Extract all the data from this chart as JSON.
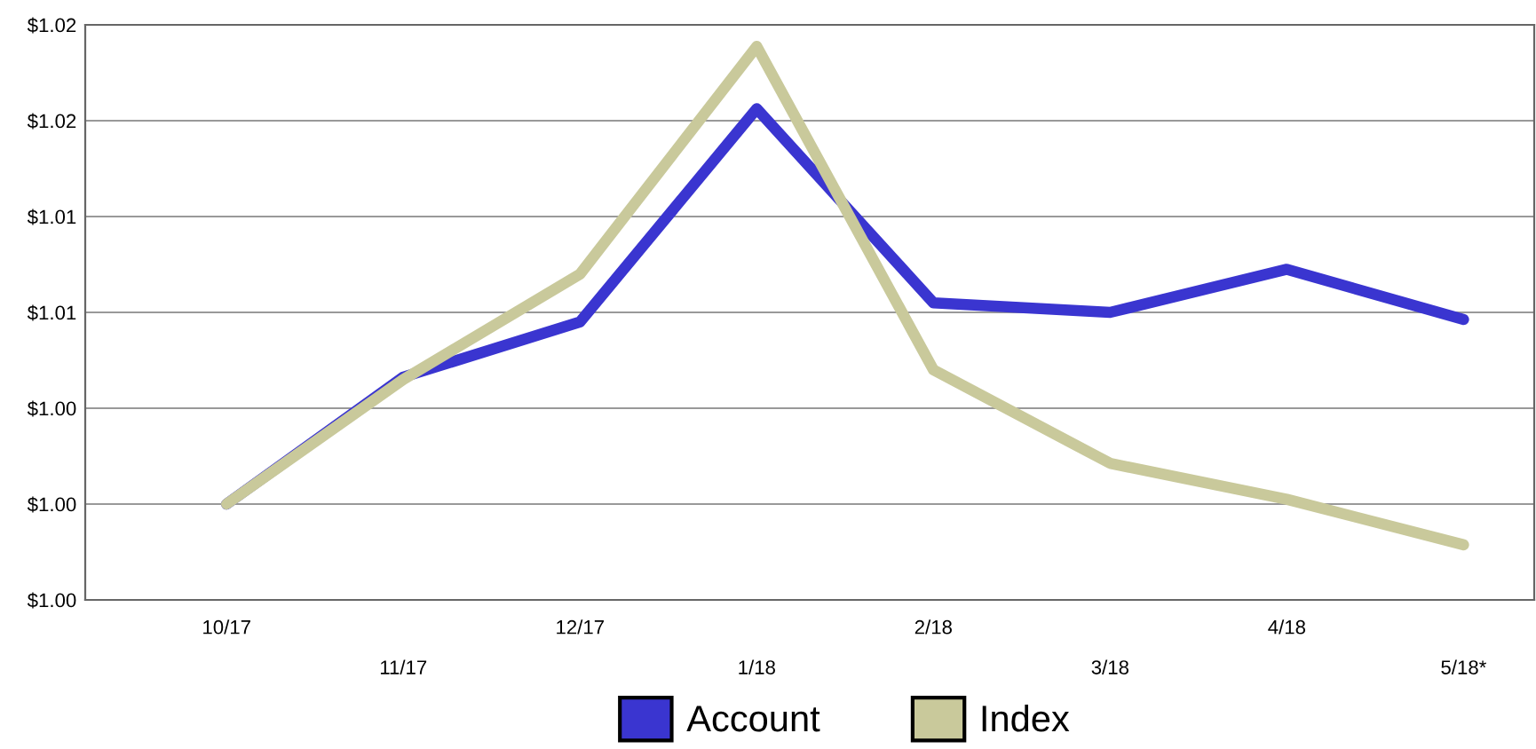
{
  "chart_data": {
    "type": "line",
    "categories": [
      "10/17",
      "11/17",
      "12/17",
      "1/18",
      "2/18",
      "3/18",
      "4/18",
      "5/18*"
    ],
    "series": [
      {
        "name": "Account",
        "color": "#3a35d0",
        "values": [
          1.0,
          1.0053,
          1.0076,
          1.0165,
          1.0084,
          1.008,
          1.0098,
          1.0077
        ]
      },
      {
        "name": "Index",
        "color": "#c9c99b",
        "values": [
          1.0,
          1.0052,
          1.0096,
          1.0191,
          1.0056,
          1.0017,
          1.0002,
          0.9983
        ]
      }
    ],
    "ylim": [
      0.996,
      1.02
    ],
    "yticks": [
      {
        "value": 0.996,
        "label": "$1.00"
      },
      {
        "value": 1.0,
        "label": "$1.00"
      },
      {
        "value": 1.004,
        "label": "$1.00"
      },
      {
        "value": 1.008,
        "label": "$1.01"
      },
      {
        "value": 1.012,
        "label": "$1.01"
      },
      {
        "value": 1.016,
        "label": "$1.02"
      },
      {
        "value": 1.02,
        "label": "$1.02"
      }
    ],
    "grid": "y",
    "legend": "bottom",
    "marker": "none",
    "line_style": "solid"
  }
}
